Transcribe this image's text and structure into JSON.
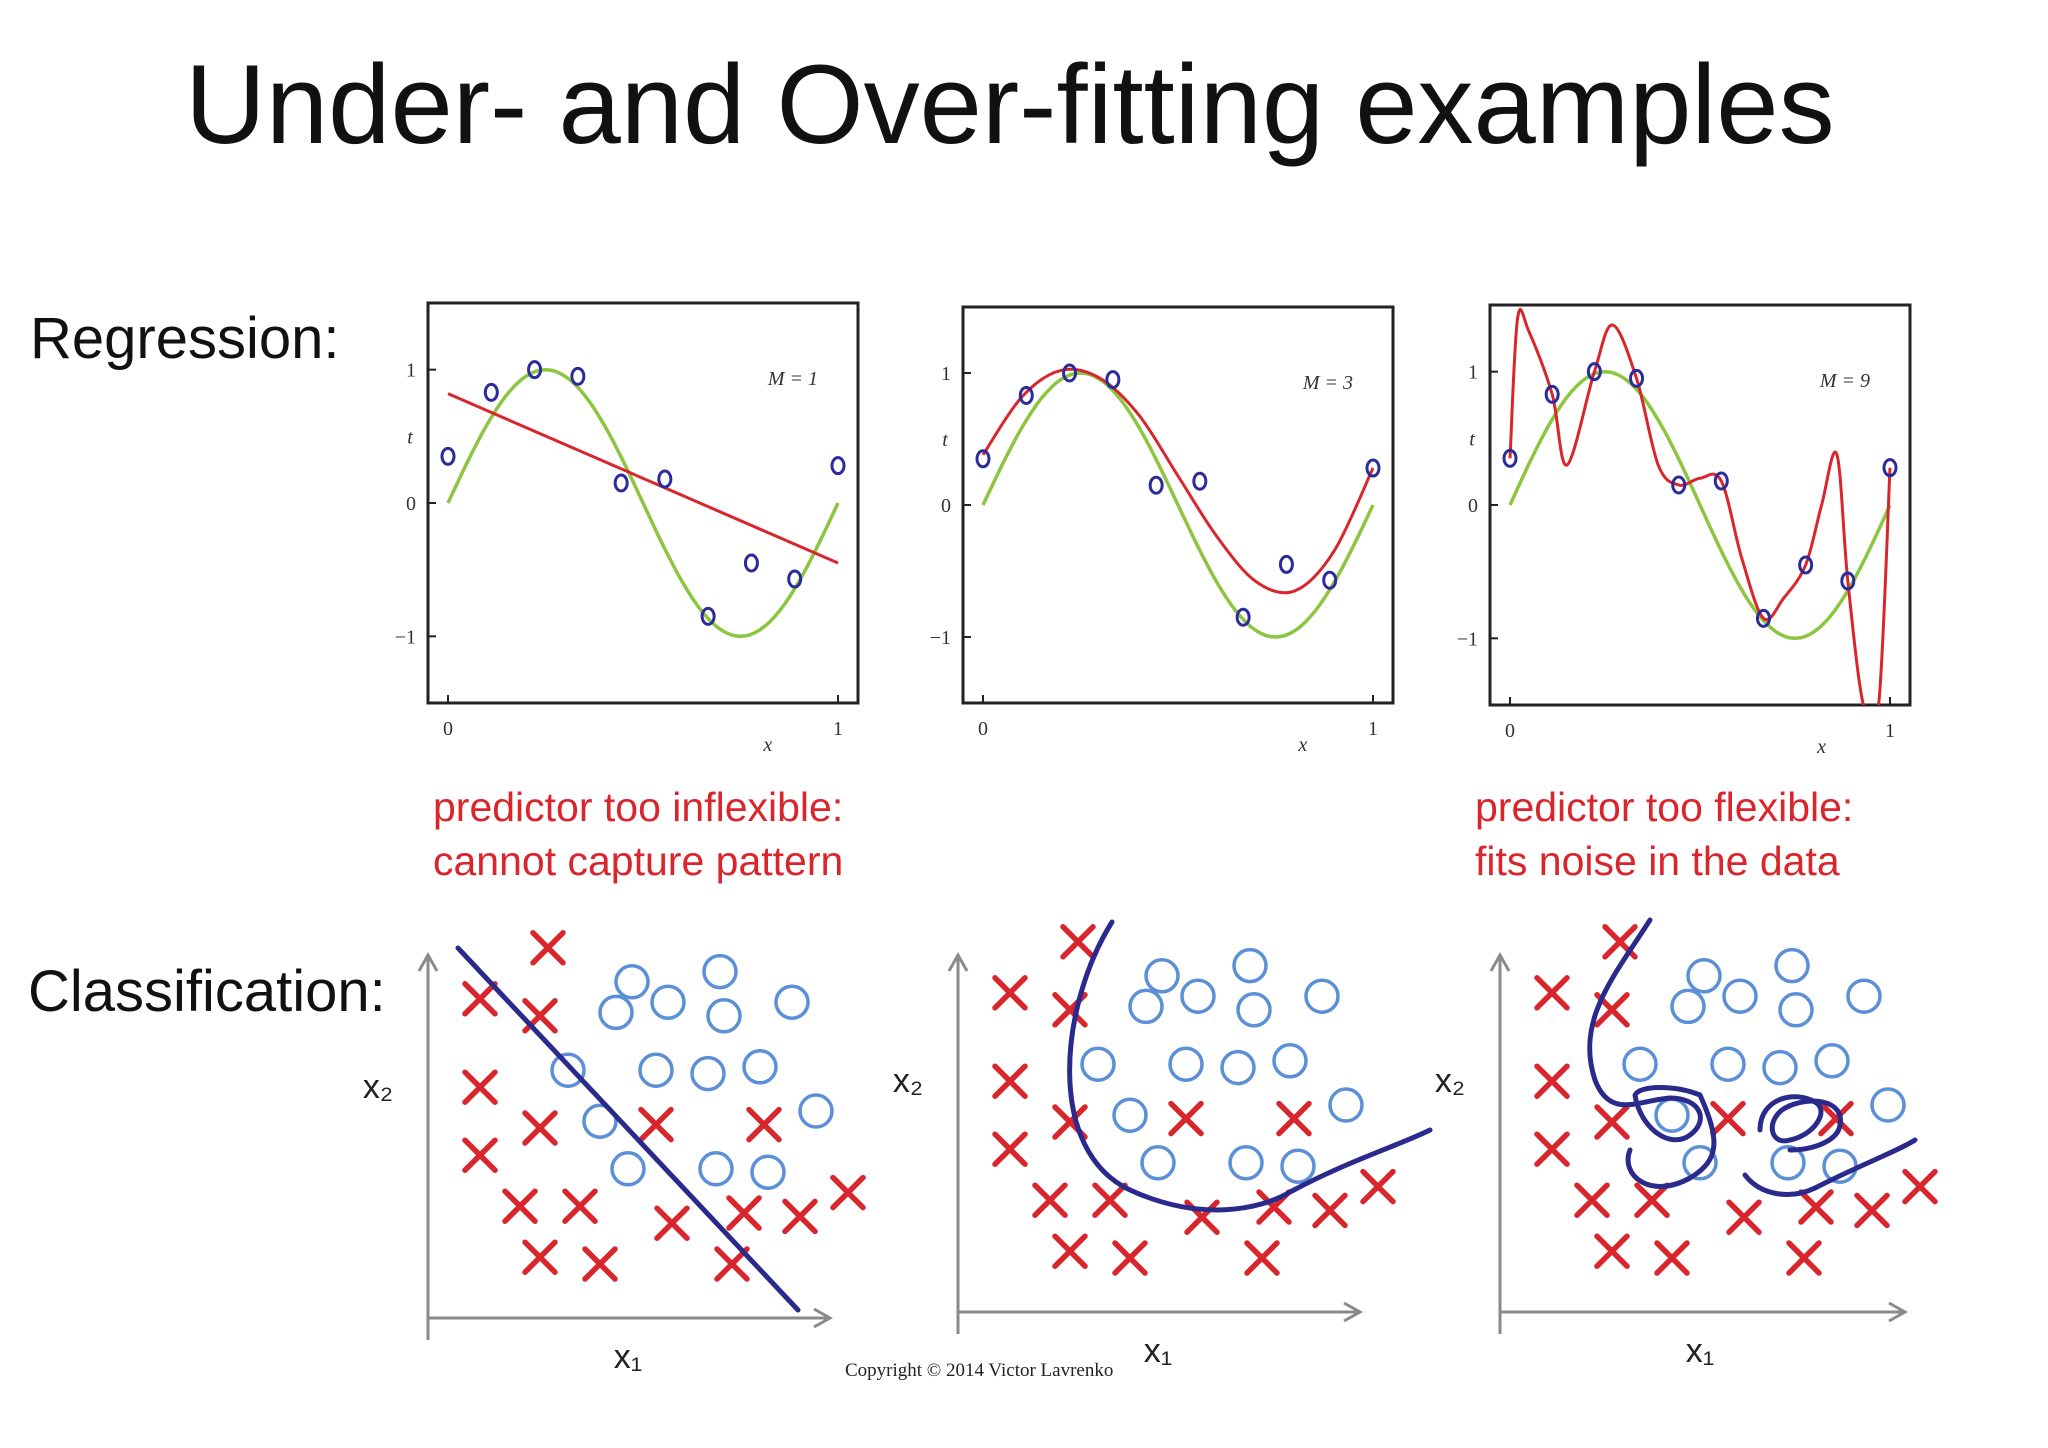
{
  "title": "Under- and Over-fitting examples",
  "row_labels": {
    "regression": "Regression:",
    "classification": "Classification:"
  },
  "captions": {
    "underfit": [
      "predictor too inflexible:",
      "cannot capture pattern"
    ],
    "overfit": [
      "predictor too flexible:",
      "fits noise in the data"
    ]
  },
  "copyright": "Copyright © 2014 Victor Lavrenko",
  "colors": {
    "target_curve": "#8cc63f",
    "fit_curve": "#d9262c",
    "data_points": "#2b2b9b",
    "class_circles": "#5b8fd6",
    "class_crosses": "#d9262c",
    "boundary": "#2a2a8c",
    "caption_text": "#d9262c"
  },
  "regression_panels": [
    {
      "model_label": "M = 1",
      "fit": "degree-1 polynomial (straight line)"
    },
    {
      "model_label": "M = 3",
      "fit": "degree-3 polynomial"
    },
    {
      "model_label": "M = 9",
      "fit": "degree-9 polynomial"
    }
  ],
  "regression_axes": {
    "xlabel": "x",
    "ylabel": "t",
    "xticks": [
      "0",
      "1"
    ],
    "yticks": [
      "1",
      "0",
      "−1"
    ]
  },
  "chart_data": [
    {
      "type": "scatter",
      "title": "M = 1",
      "xlabel": "x",
      "ylabel": "t",
      "xlim": [
        0,
        1
      ],
      "ylim": [
        -1.5,
        1.5
      ],
      "series": [
        {
          "name": "",
          "kind": "points",
          "x": [
            0,
            0.111,
            0.222,
            0.333,
            0.444,
            0.556,
            0.667,
            0.778,
            0.889,
            1
          ],
          "y": [
            0.35,
            0.83,
            1.0,
            0.95,
            0.15,
            0.18,
            -0.85,
            -0.45,
            -0.57,
            0.28
          ]
        },
        {
          "name": "",
          "kind": "target_curve",
          "function": "sin(2*pi*x)"
        },
        {
          "name": "",
          "kind": "fitted_line",
          "x": [
            0,
            1
          ],
          "y": [
            0.82,
            -0.45
          ]
        }
      ]
    },
    {
      "type": "scatter",
      "title": "M = 3",
      "xlabel": "x",
      "ylabel": "t",
      "xlim": [
        0,
        1
      ],
      "ylim": [
        -1.5,
        1.5
      ],
      "series": [
        {
          "name": "",
          "kind": "points",
          "x": [
            0,
            0.111,
            0.222,
            0.333,
            0.444,
            0.556,
            0.667,
            0.778,
            0.889,
            1
          ],
          "y": [
            0.35,
            0.83,
            1.0,
            0.95,
            0.15,
            0.18,
            -0.85,
            -0.45,
            -0.57,
            0.28
          ]
        },
        {
          "name": "",
          "kind": "target_curve",
          "function": "sin(2*pi*x)"
        },
        {
          "name": "",
          "kind": "fitted_curve",
          "x": [
            0,
            0.1,
            0.2,
            0.3,
            0.4,
            0.5,
            0.6,
            0.7,
            0.8,
            0.9,
            1
          ],
          "y": [
            0.38,
            0.82,
            1.02,
            0.96,
            0.68,
            0.22,
            -0.24,
            -0.58,
            -0.65,
            -0.35,
            0.28
          ]
        }
      ]
    },
    {
      "type": "scatter",
      "title": "M = 9",
      "xlabel": "x",
      "ylabel": "t",
      "xlim": [
        0,
        1
      ],
      "ylim": [
        -1.5,
        1.5
      ],
      "series": [
        {
          "name": "",
          "kind": "points",
          "x": [
            0,
            0.111,
            0.222,
            0.333,
            0.444,
            0.556,
            0.667,
            0.778,
            0.889,
            1
          ],
          "y": [
            0.35,
            0.83,
            1.0,
            0.95,
            0.15,
            0.18,
            -0.85,
            -0.45,
            -0.57,
            0.28
          ]
        },
        {
          "name": "",
          "kind": "target_curve",
          "function": "sin(2*pi*x)"
        },
        {
          "name": "",
          "kind": "fitted_curve",
          "x": [
            0,
            0.02,
            0.05,
            0.111,
            0.15,
            0.222,
            0.27,
            0.333,
            0.39,
            0.444,
            0.5,
            0.556,
            0.61,
            0.667,
            0.72,
            0.778,
            0.82,
            0.86,
            0.889,
            0.93,
            0.97,
            1
          ],
          "y": [
            0.35,
            1.4,
            1.3,
            0.83,
            0.3,
            1.0,
            1.35,
            0.95,
            0.3,
            0.15,
            0.2,
            0.18,
            -0.4,
            -0.85,
            -0.7,
            -0.45,
            0.0,
            0.38,
            -0.57,
            -1.5,
            -1.5,
            0.28
          ]
        }
      ]
    }
  ],
  "classification_panels": [
    {
      "boundary": "linear"
    },
    {
      "boundary": "smooth curve"
    },
    {
      "boundary": "wiggly curve with islands"
    }
  ],
  "classification_axes": {
    "xlabel": "x₁",
    "ylabel": "x₂"
  },
  "classification_data": {
    "circles": [
      [
        0.46,
        0.93
      ],
      [
        0.68,
        0.96
      ],
      [
        0.42,
        0.84
      ],
      [
        0.55,
        0.87
      ],
      [
        0.69,
        0.83
      ],
      [
        0.86,
        0.87
      ],
      [
        0.3,
        0.67
      ],
      [
        0.52,
        0.67
      ],
      [
        0.65,
        0.66
      ],
      [
        0.78,
        0.68
      ],
      [
        0.38,
        0.52
      ],
      [
        0.92,
        0.55
      ],
      [
        0.45,
        0.38
      ],
      [
        0.67,
        0.38
      ],
      [
        0.8,
        0.37
      ]
    ],
    "crosses": [
      [
        0.25,
        1.03
      ],
      [
        0.08,
        0.88
      ],
      [
        0.23,
        0.83
      ],
      [
        0.08,
        0.62
      ],
      [
        0.08,
        0.42
      ],
      [
        0.23,
        0.5
      ],
      [
        0.52,
        0.51
      ],
      [
        0.79,
        0.51
      ],
      [
        0.18,
        0.27
      ],
      [
        0.33,
        0.27
      ],
      [
        0.56,
        0.22
      ],
      [
        0.74,
        0.25
      ],
      [
        0.88,
        0.24
      ],
      [
        1.0,
        0.31
      ],
      [
        0.23,
        0.12
      ],
      [
        0.38,
        0.1
      ],
      [
        0.71,
        0.1
      ]
    ]
  }
}
